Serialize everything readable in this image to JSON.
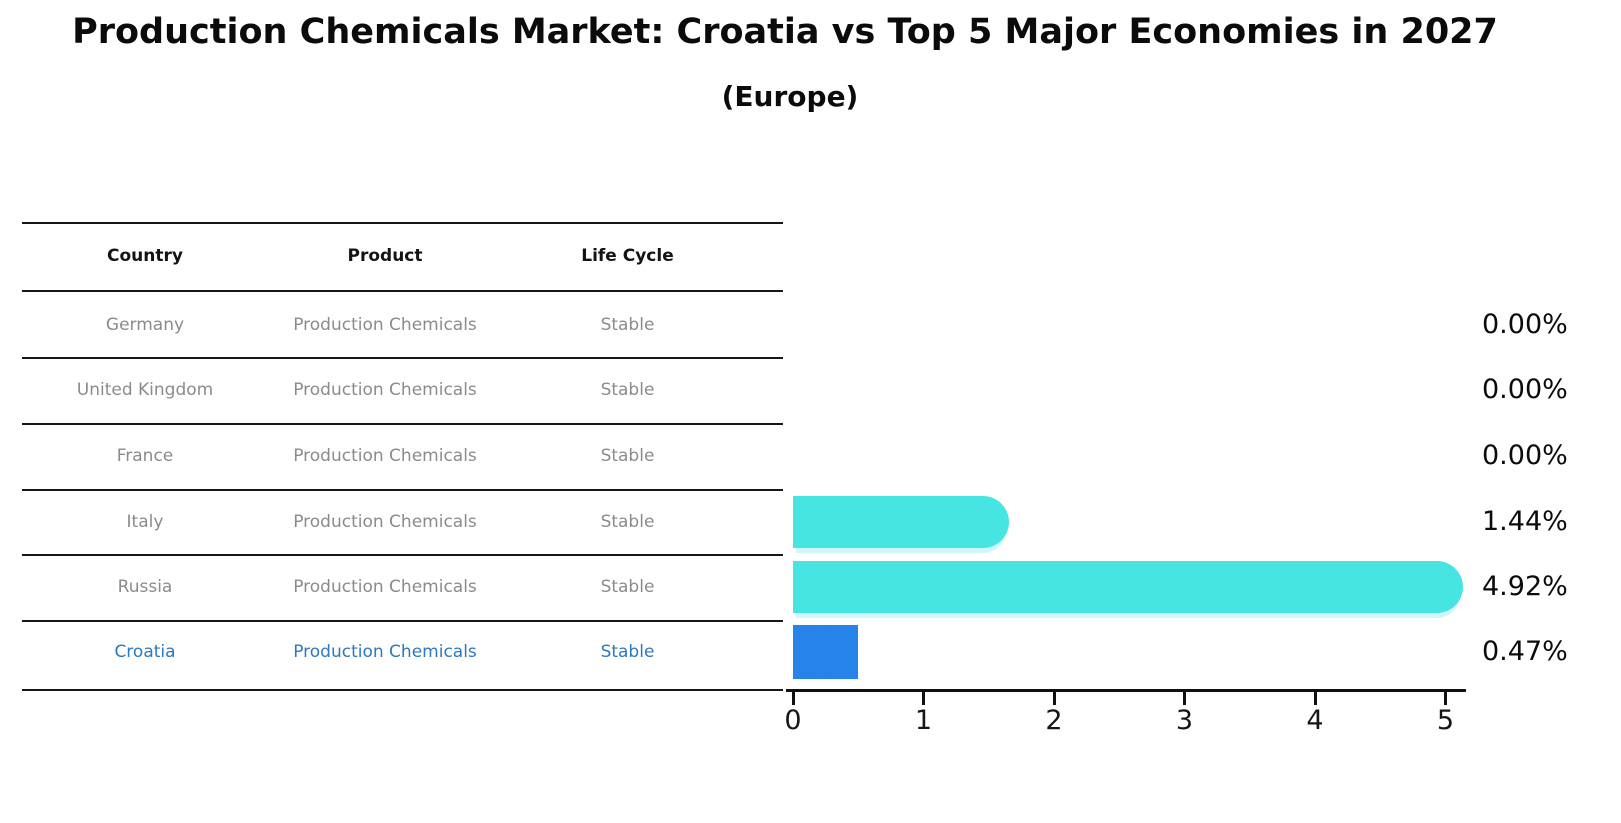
{
  "title": "Production Chemicals Market: Croatia vs Top 5 Major Economies in 2027",
  "subtitle": "(Europe)",
  "table": {
    "headers": [
      "Country",
      "Product",
      "Life Cycle"
    ],
    "rows": [
      {
        "country": "Germany",
        "product": "Production Chemicals",
        "life_cycle": "Stable",
        "value_label": "0.00%",
        "highlight": false
      },
      {
        "country": "United Kingdom",
        "product": "Production Chemicals",
        "life_cycle": "Stable",
        "value_label": "0.00%",
        "highlight": false
      },
      {
        "country": "France",
        "product": "Production Chemicals",
        "life_cycle": "Stable",
        "value_label": "0.00%",
        "highlight": false
      },
      {
        "country": "Italy",
        "product": "Production Chemicals",
        "life_cycle": "Stable",
        "value_label": "1.44%",
        "highlight": false
      },
      {
        "country": "Russia",
        "product": "Production Chemicals",
        "life_cycle": "Stable",
        "value_label": "4.92%",
        "highlight": false
      },
      {
        "country": "Croatia",
        "product": "Production Chemicals",
        "life_cycle": "Stable",
        "value_label": "0.47%",
        "highlight": true
      }
    ]
  },
  "chart_data": {
    "type": "bar",
    "orientation": "horizontal",
    "title": "Production Chemicals Market: Croatia vs Top 5 Major Economies in 2027",
    "subtitle": "(Europe)",
    "categories": [
      "Germany",
      "United Kingdom",
      "France",
      "Italy",
      "Russia",
      "Croatia"
    ],
    "values": [
      0.0,
      0.0,
      0.0,
      1.44,
      4.92,
      0.47
    ],
    "value_labels": [
      "0.00%",
      "0.00%",
      "0.00%",
      "1.44%",
      "4.92%",
      "0.47%"
    ],
    "xlabel": "",
    "ylabel": "",
    "xlim": [
      0,
      5
    ],
    "x_ticks": [
      "0",
      "1",
      "2",
      "3",
      "4",
      "5"
    ],
    "grid": false,
    "legend": "none",
    "highlight_category": "Croatia",
    "highlight_bar_style": "dashed-edge"
  },
  "colors": {
    "background": "#FFFFFF",
    "bar_default": "#47E5E2",
    "bar_highlight": "#2583EA",
    "highlight_text": "#2D78C0",
    "row_text": "#8B8B8B",
    "heading_text": "#0B0B0B",
    "line": "#161616"
  }
}
